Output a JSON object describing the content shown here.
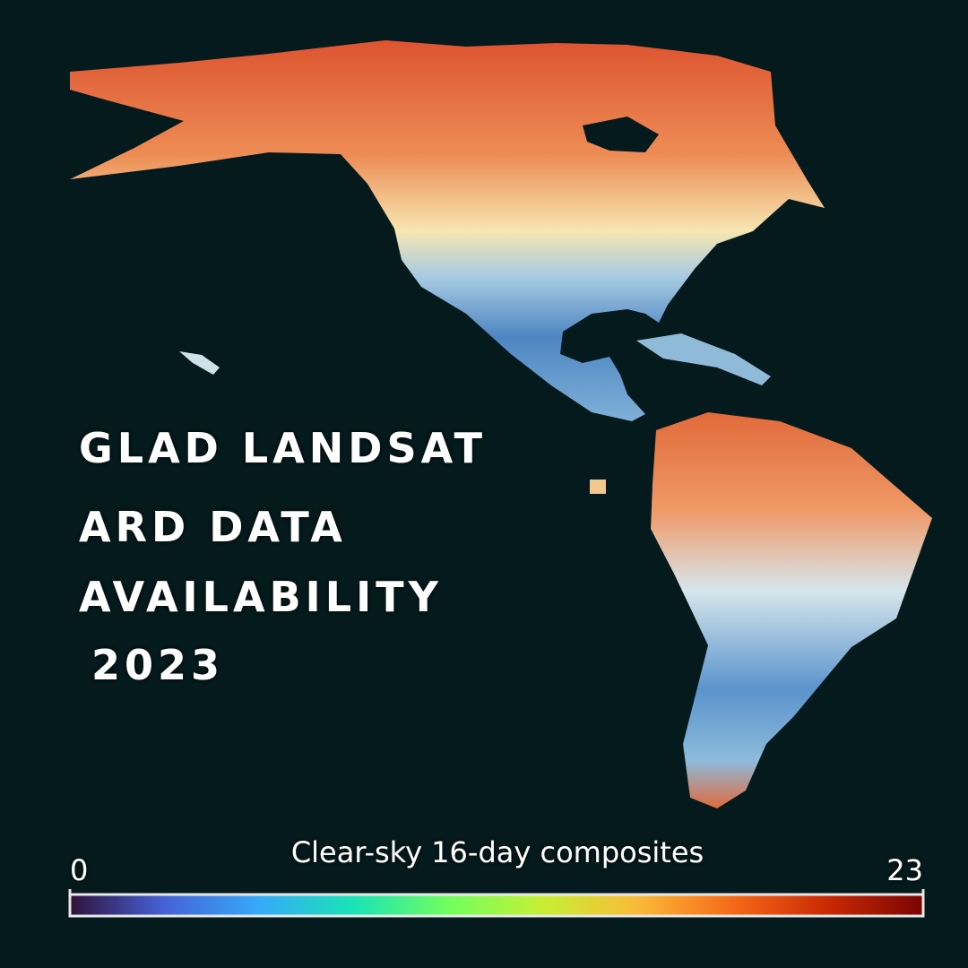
{
  "title": [
    "GLAD LANDSAT",
    "ARD DATA",
    "AVAILABILITY",
    "2023"
  ],
  "legend": {
    "label": "Clear-sky 16-day composites",
    "min": 0,
    "max": 23,
    "colors": [
      "#30123b",
      "#4662d7",
      "#36aaf9",
      "#1ae4b6",
      "#72fe5e",
      "#c7ef34",
      "#fbb938",
      "#f56918",
      "#c92903",
      "#7a0403"
    ]
  }
}
